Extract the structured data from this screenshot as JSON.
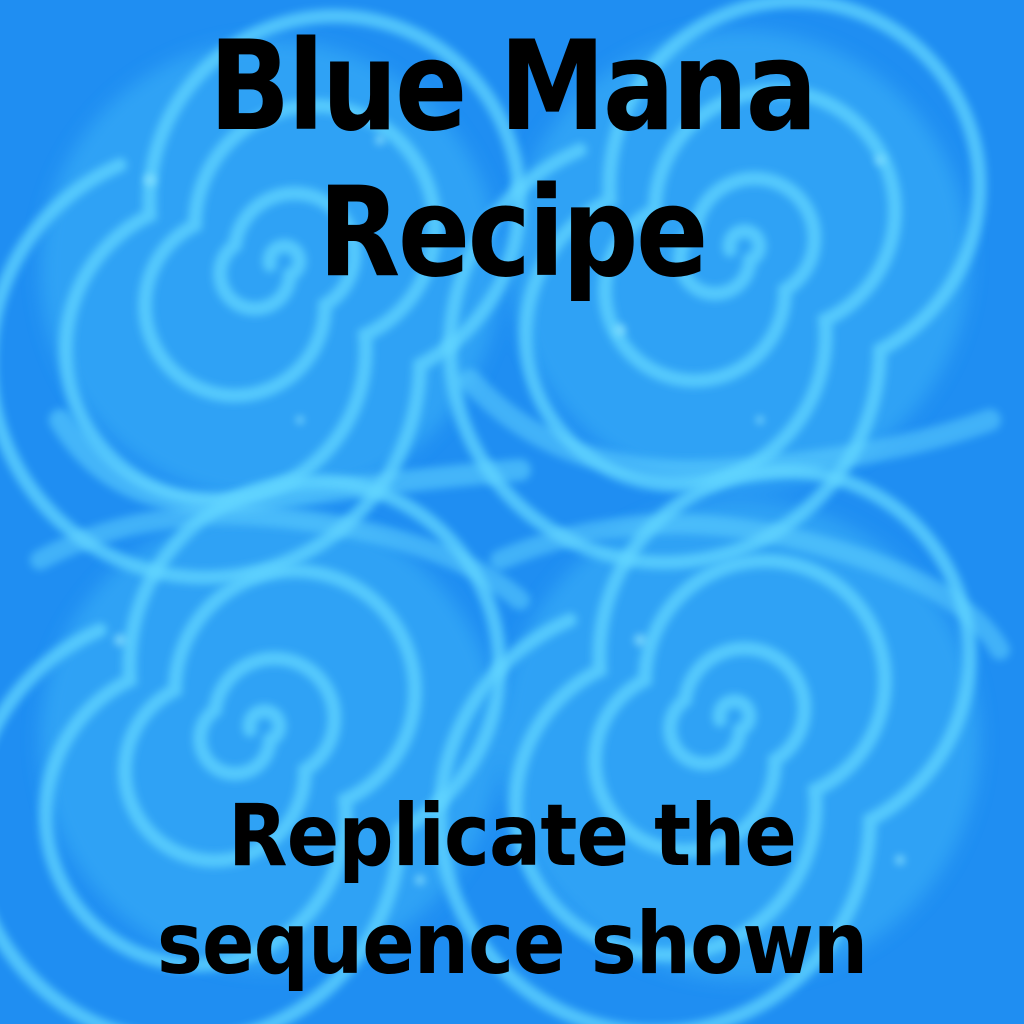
{
  "screen": {
    "background_color": "#1f8ef2",
    "swirl_color": "#5fd8ff",
    "text_color": "#000000"
  },
  "title": {
    "line1": "Blue Mana",
    "line2": "Recipe"
  },
  "instruction": {
    "line1": "Replicate the",
    "line2": "sequence shown"
  },
  "art": {
    "swirls": [
      "swirl-top-left",
      "swirl-top-right",
      "swirl-bottom-left",
      "swirl-bottom-right"
    ]
  }
}
